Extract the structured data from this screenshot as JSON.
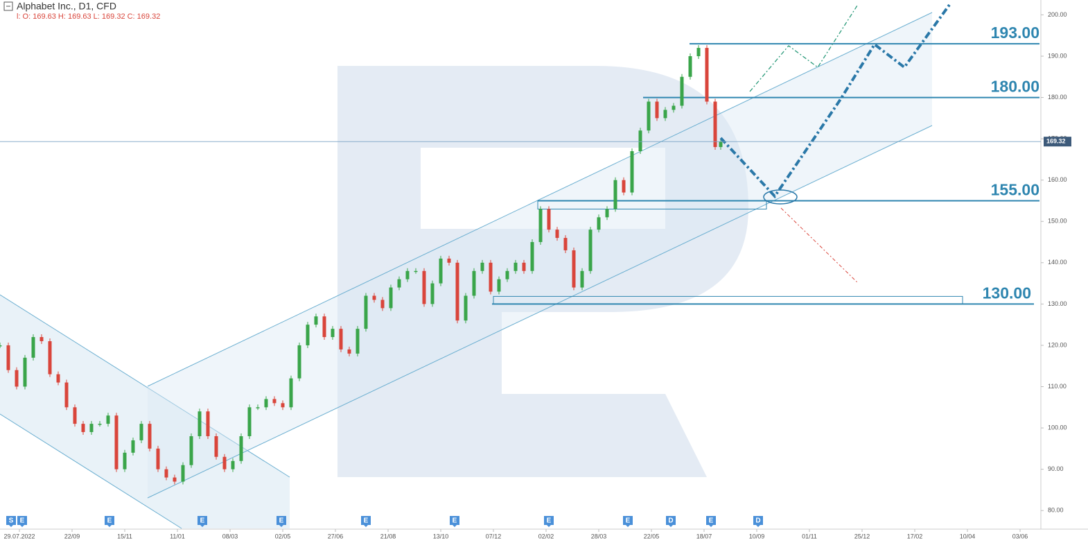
{
  "chart_data": {
    "type": "candlestick",
    "title": "Alphabet Inc.,  D1,  CFD",
    "ohlc_label": "l: O: 169.63  H: 169.63  L: 169.32  C: 169.32",
    "last_price": {
      "value": 169.32,
      "label": "169.32"
    },
    "up_color": "#3aa54a",
    "down_color": "#d9453b",
    "x": [
      -14,
      -8,
      -2,
      4,
      10,
      16,
      22,
      28,
      34,
      40,
      46,
      52,
      58,
      64,
      70,
      76,
      82,
      88,
      94,
      100,
      106,
      112,
      118,
      124,
      130,
      136,
      142,
      148,
      154,
      160,
      166,
      172,
      178,
      184,
      190,
      196,
      202,
      208,
      214,
      220,
      226,
      232,
      238,
      244,
      250,
      256,
      262,
      268,
      274,
      280,
      286,
      292,
      298,
      304,
      310,
      316,
      322,
      328,
      334,
      340,
      346,
      352,
      358,
      364,
      370,
      376,
      382,
      388,
      394,
      400,
      406,
      412,
      418,
      424,
      430,
      436,
      442,
      448,
      454,
      460,
      466,
      472,
      478,
      484,
      490,
      496,
      502,
      506
    ],
    "values": [
      120,
      114,
      110,
      117,
      122,
      121,
      113,
      111,
      105,
      101,
      99,
      101,
      101,
      103,
      90,
      94,
      97,
      101,
      95,
      90,
      88,
      87,
      91,
      98,
      104,
      98,
      93,
      90,
      92,
      98,
      105,
      105,
      107,
      106,
      105,
      112,
      120,
      125,
      127,
      122,
      124,
      119,
      118,
      124,
      132,
      131,
      129,
      134,
      136,
      138,
      138,
      130,
      135,
      141,
      140,
      126,
      132,
      138,
      140,
      133,
      136,
      138,
      140,
      138,
      145,
      153,
      148,
      146,
      143,
      134,
      138,
      148,
      151,
      153,
      160,
      157,
      167,
      172,
      179,
      175,
      177,
      178,
      185,
      190,
      192,
      179,
      168,
      169.32
    ],
    "xlim": [
      -14,
      737
    ],
    "xticks": [
      {
        "value": 0,
        "label": "29.07.2022"
      },
      {
        "value": 38,
        "label": "22/09"
      },
      {
        "value": 76,
        "label": "15/11"
      },
      {
        "value": 114,
        "label": "11/01"
      },
      {
        "value": 152,
        "label": "08/03"
      },
      {
        "value": 190,
        "label": "02/05"
      },
      {
        "value": 228,
        "label": "27/06"
      },
      {
        "value": 266,
        "label": "21/08"
      },
      {
        "value": 304,
        "label": "13/10"
      },
      {
        "value": 342,
        "label": "07/12"
      },
      {
        "value": 380,
        "label": "02/02"
      },
      {
        "value": 418,
        "label": "28/03"
      },
      {
        "value": 456,
        "label": "22/05"
      },
      {
        "value": 494,
        "label": "18/07"
      },
      {
        "value": 532,
        "label": "10/09"
      },
      {
        "value": 570,
        "label": "01/11"
      },
      {
        "value": 608,
        "label": "25/12"
      },
      {
        "value": 646,
        "label": "17/02"
      },
      {
        "value": 684,
        "label": "10/04"
      },
      {
        "value": 722,
        "label": "03/06"
      }
    ],
    "ylim": [
      75.5,
      203.6
    ],
    "yticks": [
      {
        "value": 80,
        "label": "80.00"
      },
      {
        "value": 90,
        "label": "90.00"
      },
      {
        "value": 100,
        "label": "100.00"
      },
      {
        "value": 110,
        "label": "110.00"
      },
      {
        "value": 120,
        "label": "120.00"
      },
      {
        "value": 130,
        "label": "130.00"
      },
      {
        "value": 140,
        "label": "140.00"
      },
      {
        "value": 150,
        "label": "150.00"
      },
      {
        "value": 160,
        "label": "160.00"
      },
      {
        "value": 170,
        "label": "170.00"
      },
      {
        "value": 180,
        "label": "180.00"
      },
      {
        "value": 190,
        "label": "190.00"
      },
      {
        "value": 200,
        "label": "200.00"
      }
    ],
    "levels": [
      {
        "value": 193,
        "label": "193.00"
      },
      {
        "value": 180,
        "label": "180.00"
      },
      {
        "value": 155,
        "label": "155.00"
      },
      {
        "value": 130,
        "label": "130.00"
      }
    ],
    "events": [
      {
        "x": -6,
        "label": "S"
      },
      {
        "x": 2,
        "label": "E"
      },
      {
        "x": 65,
        "label": "E"
      },
      {
        "x": 132,
        "label": "E"
      },
      {
        "x": 189,
        "label": "E"
      },
      {
        "x": 250,
        "label": "E"
      },
      {
        "x": 314,
        "label": "E"
      },
      {
        "x": 382,
        "label": "E"
      },
      {
        "x": 439,
        "label": "E"
      },
      {
        "x": 470,
        "label": "D"
      },
      {
        "x": 499,
        "label": "E"
      },
      {
        "x": 533,
        "label": "D"
      }
    ]
  }
}
